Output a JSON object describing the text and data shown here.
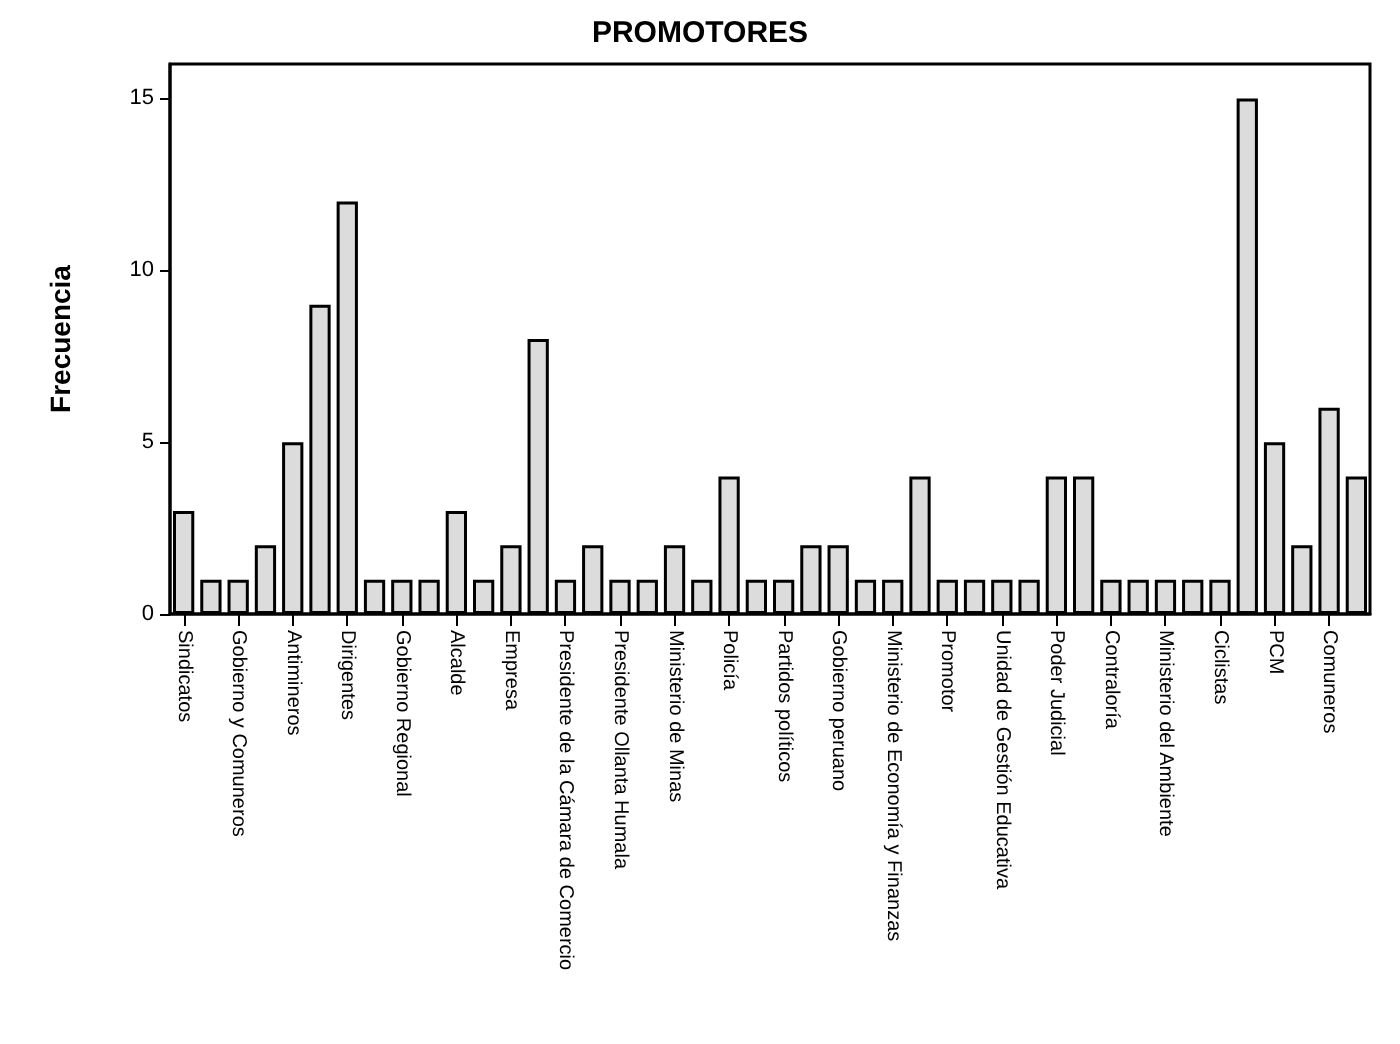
{
  "chart_data": {
    "type": "bar",
    "title": "PROMOTORES",
    "ylabel": "Frecuencia",
    "categories": [
      "Sindicatos",
      null,
      "Gobierno y Comuneros",
      null,
      "Antimineros",
      null,
      "Dirigentes",
      null,
      "Gobierno Regional",
      null,
      "Alcalde",
      null,
      "Empresa",
      null,
      "Presidente de la Cámara de Comercio",
      null,
      "Presidente Ollanta Humala",
      null,
      "Ministerio de Minas",
      null,
      "Policía",
      null,
      "Partidos políticos",
      null,
      "Gobierno peruano",
      null,
      "Ministerio de Economía y Finanzas",
      null,
      "Promotor",
      null,
      "Unidad de Gestión Educativa",
      null,
      "Poder Judicial",
      null,
      "Contraloría",
      null,
      "Ministerio del Ambiente",
      null,
      "Ciclistas",
      null,
      "PCM",
      null,
      "Comuneros",
      null
    ],
    "values": [
      3,
      1,
      1,
      2,
      5,
      9,
      12,
      1,
      1,
      1,
      3,
      1,
      2,
      8,
      1,
      2,
      1,
      1,
      2,
      1,
      4,
      1,
      1,
      2,
      2,
      1,
      1,
      4,
      1,
      1,
      1,
      1,
      4,
      4,
      1,
      1,
      1,
      1,
      1,
      15,
      5,
      2,
      6,
      4
    ],
    "color": "#dcdcdc",
    "ylim": [
      0,
      16
    ],
    "yticks": [
      0,
      5,
      10,
      15
    ]
  }
}
